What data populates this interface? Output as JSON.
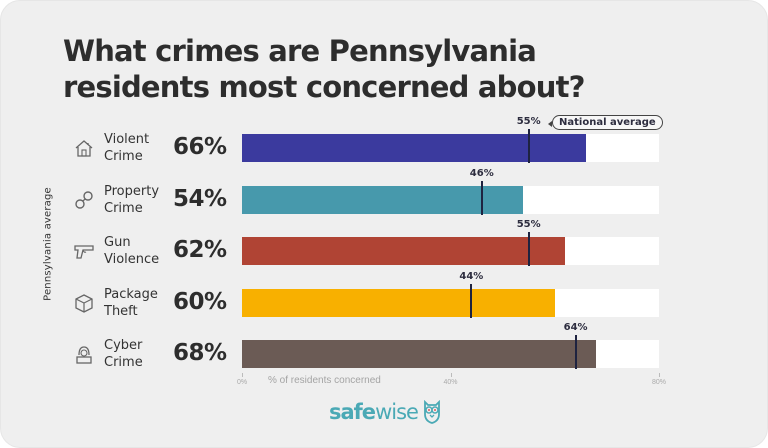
{
  "title": "What crimes are Pennsylvania residents most concerned about?",
  "title_lines": [
    "What crimes are Pennsylvania",
    "residents most concerned about?"
  ],
  "brand": {
    "part1": "safe",
    "part2": "wise",
    "color": "#4aa9b5"
  },
  "national_average_label": "National average",
  "chart_data": {
    "type": "bar",
    "orientation": "horizontal",
    "title": "What crimes are Pennsylvania residents most concerned about?",
    "ylabel": "Pennsylvania  average",
    "xlabel": "% of residents concerned",
    "xlim": [
      0,
      80
    ],
    "xticks": [
      0,
      40,
      80
    ],
    "xtick_labels": [
      "0%",
      "40%",
      "80%"
    ],
    "categories": [
      "Violent Crime",
      "Property Crime",
      "Gun Violence",
      "Package Theft",
      "Cyber Crime"
    ],
    "category_lines": [
      [
        "Violent",
        "Crime"
      ],
      [
        "Property",
        "Crime"
      ],
      [
        "Gun",
        "Violence"
      ],
      [
        "Package",
        "Theft"
      ],
      [
        "Cyber",
        "Crime"
      ]
    ],
    "icons": [
      "house-icon",
      "handcuffs-icon",
      "gun-icon",
      "package-icon",
      "hacker-icon"
    ],
    "series": [
      {
        "name": "Pennsylvania average",
        "values": [
          66,
          54,
          62,
          60,
          68
        ],
        "labels": [
          "66%",
          "54%",
          "62%",
          "60%",
          "68%"
        ]
      },
      {
        "name": "National average",
        "values": [
          55,
          46,
          55,
          44,
          64
        ],
        "labels": [
          "55%",
          "46%",
          "55%",
          "44%",
          "64%"
        ]
      }
    ],
    "colors": [
      "#3b3a9e",
      "#4799ac",
      "#b04434",
      "#f8b000",
      "#6b5b55"
    ],
    "track_color": "#ffffff",
    "grid": false,
    "legend": "callout near top-right (National average)"
  }
}
